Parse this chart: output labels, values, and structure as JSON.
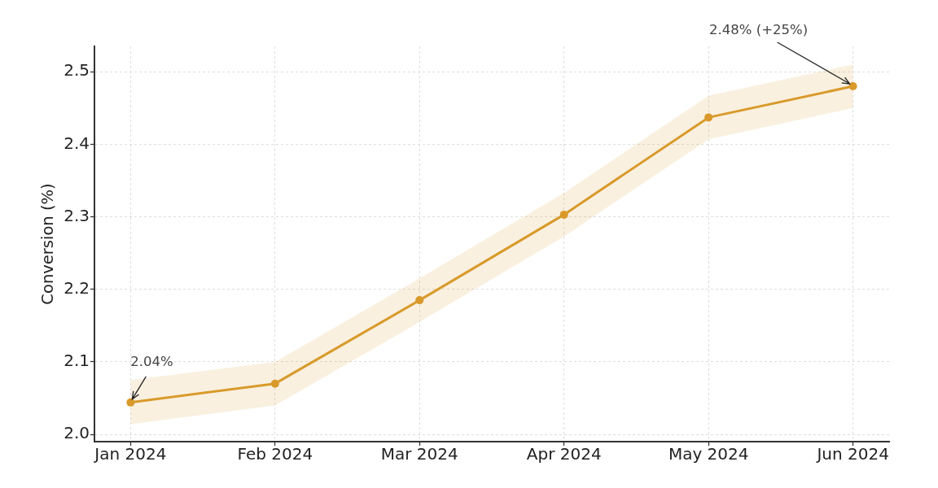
{
  "chart_data": {
    "type": "line",
    "ylabel": "Conversion (%)",
    "categories": [
      "Jan 2024",
      "Feb 2024",
      "Mar 2024",
      "Apr 2024",
      "May 2024",
      "Jun 2024"
    ],
    "series": [
      {
        "color": "#d99a2b",
        "values": [
          2.044,
          2.07,
          2.185,
          2.303,
          2.437,
          2.48
        ],
        "lower": [
          2.014,
          2.04,
          2.155,
          2.273,
          2.407,
          2.45
        ],
        "upper": [
          2.075,
          2.1,
          2.215,
          2.333,
          2.467,
          2.51
        ]
      }
    ],
    "ylim": [
      1.99,
      2.535
    ],
    "yticks": [
      {
        "value": 2,
        "label": "2.0"
      },
      2.1,
      2.2,
      2.3,
      2.4,
      {
        "value": 2.5,
        "label": "2.5"
      }
    ],
    "grid": true,
    "marker": "circle",
    "line_style": "solid",
    "annotations": [
      {
        "text": "2.04%",
        "x": "Jan 2024",
        "y": 2.044
      },
      {
        "text": "2.48% (+25%)",
        "x": "Jun 2024",
        "y": 2.48
      }
    ]
  }
}
